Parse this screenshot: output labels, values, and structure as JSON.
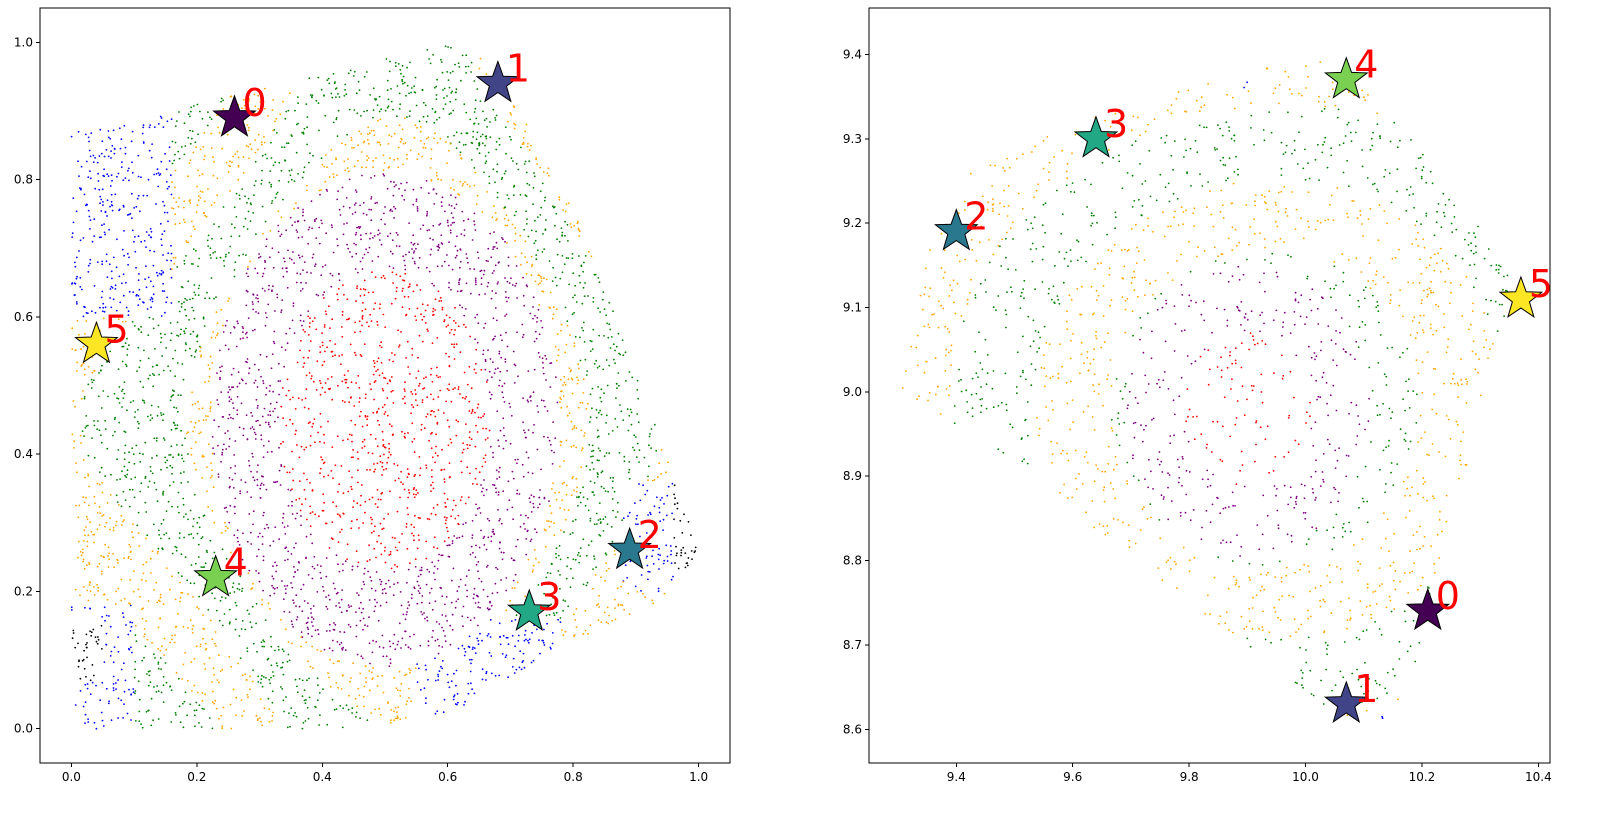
{
  "chart_data": [
    {
      "type": "scatter",
      "title": "",
      "xlabel": "",
      "ylabel": "",
      "xlim": [
        -0.05,
        1.05
      ],
      "ylim": [
        -0.05,
        1.05
      ],
      "xticks": [
        "0.0",
        "0.2",
        "0.4",
        "0.6",
        "0.8",
        "1.0"
      ],
      "yticks": [
        "0.0",
        "0.2",
        "0.4",
        "0.6",
        "0.8",
        "1.0"
      ],
      "grid": false,
      "legend": "none",
      "point_colors": [
        "red",
        "purple",
        "orange",
        "green",
        "blue",
        "black"
      ],
      "point_density": "dense uniform scatter of small dots",
      "markers": [
        {
          "label": "0",
          "x": 0.26,
          "y": 0.89,
          "color": "#440154"
        },
        {
          "label": "1",
          "x": 0.68,
          "y": 0.94,
          "color": "#414487"
        },
        {
          "label": "2",
          "x": 0.89,
          "y": 0.26,
          "color": "#2a788e"
        },
        {
          "label": "3",
          "x": 0.73,
          "y": 0.17,
          "color": "#22a884"
        },
        {
          "label": "4",
          "x": 0.23,
          "y": 0.22,
          "color": "#7ad151"
        },
        {
          "label": "5",
          "x": 0.04,
          "y": 0.56,
          "color": "#fde725"
        }
      ]
    },
    {
      "type": "scatter",
      "title": "",
      "xlabel": "",
      "ylabel": "",
      "xlim": [
        9.25,
        10.42
      ],
      "ylim": [
        8.56,
        9.455
      ],
      "xticks": [
        "9.4",
        "9.6",
        "9.8",
        "10.0",
        "10.2",
        "10.4"
      ],
      "yticks": [
        "8.6",
        "8.7",
        "8.8",
        "8.9",
        "9.0",
        "9.1",
        "9.2",
        "9.3",
        "9.4"
      ],
      "grid": false,
      "legend": "none",
      "point_colors": [
        "red",
        "purple",
        "green",
        "orange",
        "blue"
      ],
      "point_density": "sparse scatter of small dots",
      "markers": [
        {
          "label": "0",
          "x": 10.21,
          "y": 8.74,
          "color": "#440154"
        },
        {
          "label": "1",
          "x": 10.07,
          "y": 8.63,
          "color": "#414487"
        },
        {
          "label": "2",
          "x": 9.4,
          "y": 9.19,
          "color": "#2a788e"
        },
        {
          "label": "3",
          "x": 9.64,
          "y": 9.3,
          "color": "#22a884"
        },
        {
          "label": "4",
          "x": 10.07,
          "y": 9.37,
          "color": "#7ad151"
        },
        {
          "label": "5",
          "x": 10.37,
          "y": 9.11,
          "color": "#fde725"
        }
      ]
    }
  ]
}
